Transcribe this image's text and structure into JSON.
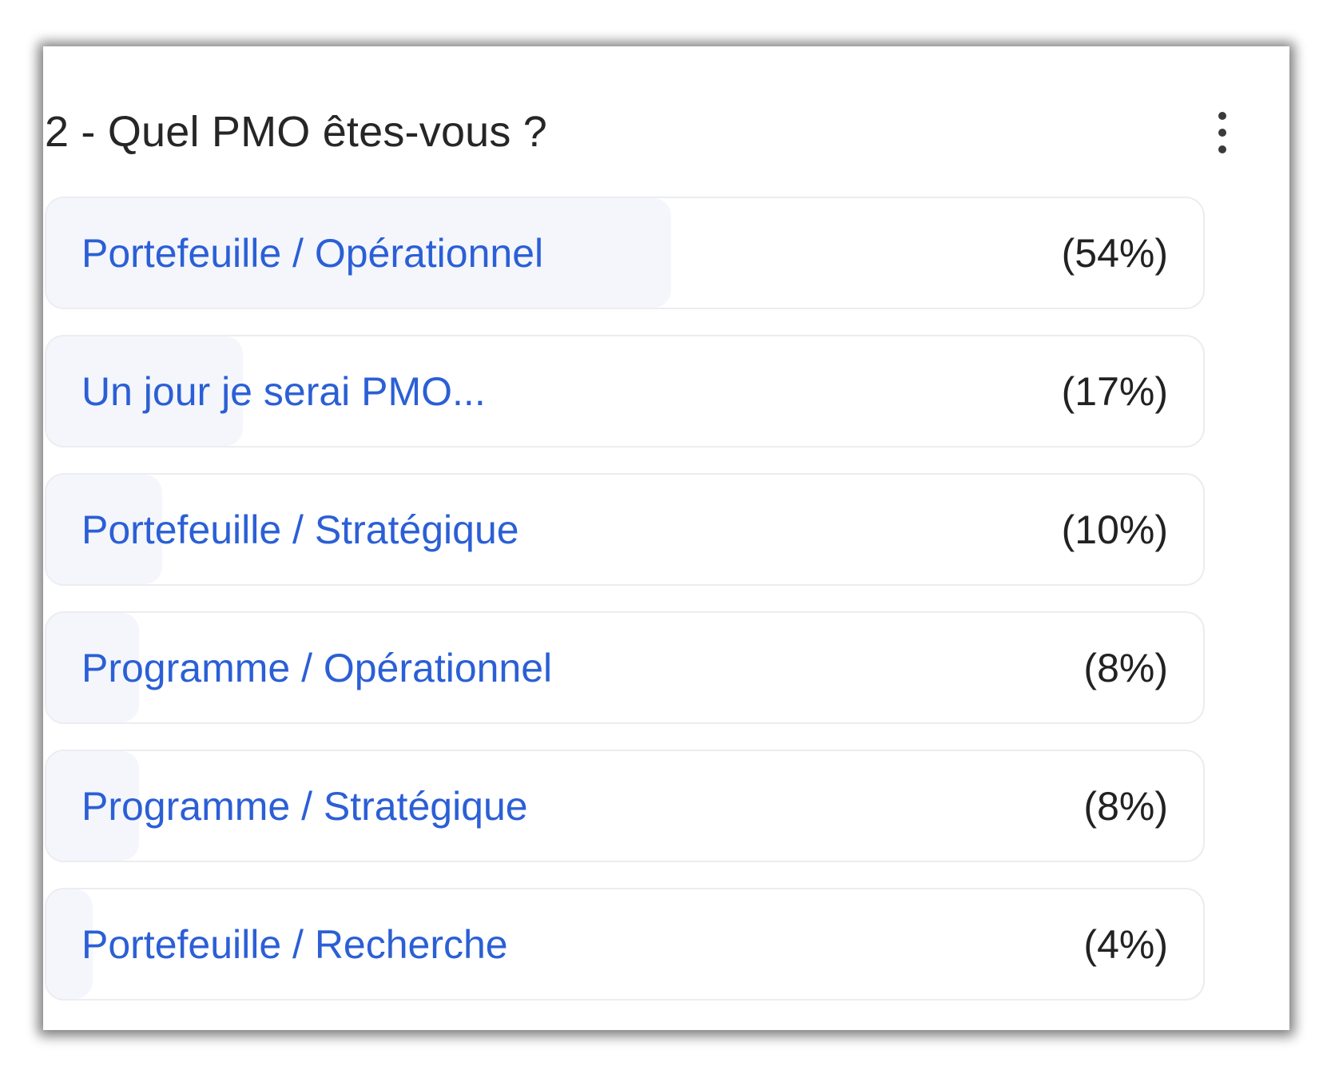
{
  "question": {
    "title": "2 - Quel PMO êtes-vous ?",
    "menu_icon": "more-vertical-icon"
  },
  "colors": {
    "label": "#2b5fd6",
    "bar_fill": "#f4f6fc",
    "border": "#ececf1",
    "title": "#262626"
  },
  "options": [
    {
      "label": "Portefeuille / Opérationnel",
      "percent_text": "(54%)",
      "percent": 54
    },
    {
      "label": "Un jour je serai PMO...",
      "percent_text": "(17%)",
      "percent": 17
    },
    {
      "label": "Portefeuille / Stratégique",
      "percent_text": "(10%)",
      "percent": 10
    },
    {
      "label": "Programme / Opérationnel",
      "percent_text": "(8%)",
      "percent": 8
    },
    {
      "label": "Programme / Stratégique",
      "percent_text": "(8%)",
      "percent": 8
    },
    {
      "label": "Portefeuille / Recherche",
      "percent_text": "(4%)",
      "percent": 4
    }
  ]
}
